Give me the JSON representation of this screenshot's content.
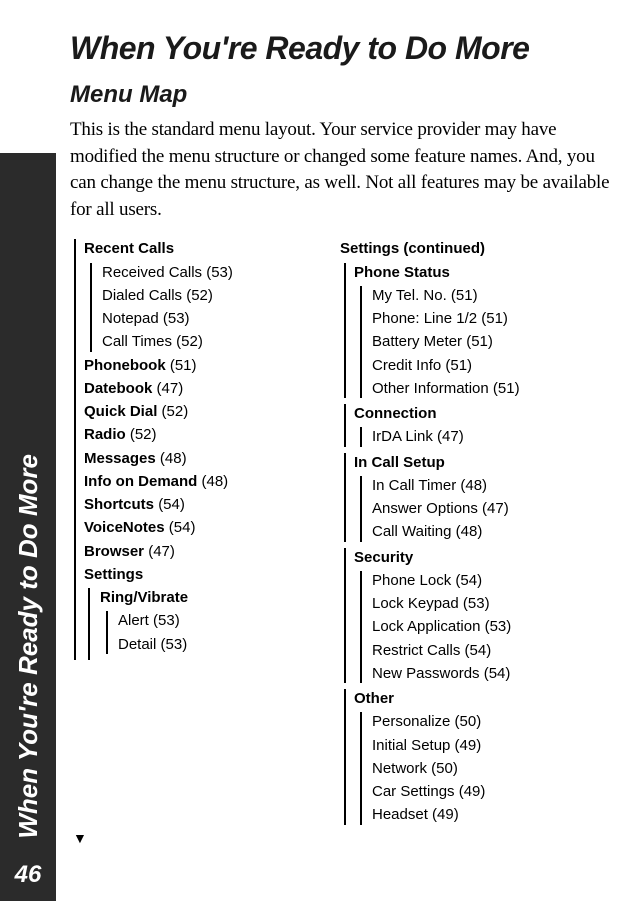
{
  "sidebar": {
    "text": "When You're Ready to Do More",
    "page": "46"
  },
  "title": "When You're Ready to Do More",
  "subtitle": "Menu Map",
  "intro": "This is the standard menu layout. Your service provider may have modified the menu structure or changed some feature names. And, you can change the menu structure, as well. Not all features may be available for all users.",
  "left": {
    "recent_calls": {
      "label": "Recent Calls",
      "items": [
        "Received Calls (53)",
        "Dialed Calls (52)",
        "Notepad (53)",
        "Call Times (52)"
      ]
    },
    "top_items": [
      {
        "label": "Phonebook",
        "page": "(51)"
      },
      {
        "label": "Datebook",
        "page": "(47)"
      },
      {
        "label": "Quick Dial",
        "page": "(52)"
      },
      {
        "label": "Radio",
        "page": "(52)"
      },
      {
        "label": "Messages",
        "page": "(48)"
      },
      {
        "label": "Info on Demand",
        "page": "(48)"
      },
      {
        "label": "Shortcuts",
        "page": "(54)"
      },
      {
        "label": "VoiceNotes",
        "page": "(54)"
      },
      {
        "label": "Browser",
        "page": "(47)"
      }
    ],
    "settings": {
      "label": "Settings",
      "ring": {
        "label": "Ring/Vibrate",
        "items": [
          "Alert (53)",
          "Detail (53)"
        ]
      }
    }
  },
  "right": {
    "heading": "Settings (continued)",
    "phone_status": {
      "label": "Phone Status",
      "items": [
        "My Tel. No. (51)",
        "Phone: Line 1/2 (51)",
        "Battery Meter (51)",
        "Credit Info (51)",
        "Other Information (51)"
      ]
    },
    "connection": {
      "label": "Connection",
      "items": [
        "IrDA Link (47)"
      ]
    },
    "in_call": {
      "label": "In Call Setup",
      "items": [
        "In Call Timer (48)",
        "Answer Options (47)",
        "Call Waiting (48)"
      ]
    },
    "security": {
      "label": "Security",
      "items": [
        "Phone Lock (54)",
        "Lock Keypad (53)",
        "Lock Application (53)",
        "Restrict Calls (54)",
        "New Passwords (54)"
      ]
    },
    "other": {
      "label": "Other",
      "items": [
        "Personalize (50)",
        "Initial Setup (49)",
        "Network (50)",
        "Car Settings (49)",
        "Headset (49)"
      ]
    }
  }
}
